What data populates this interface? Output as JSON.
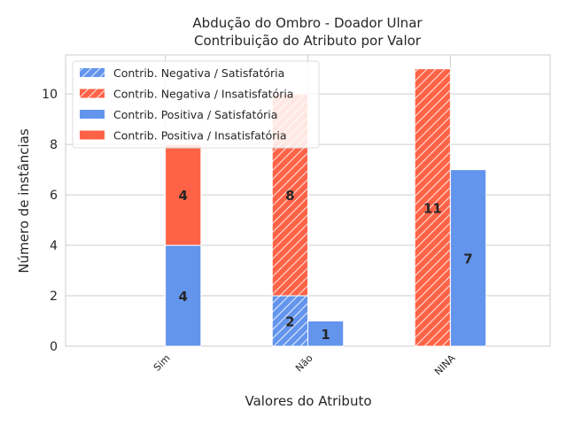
{
  "chart_data": {
    "type": "bar",
    "title_line1": "Abdução do Ombro - Doador Ulnar",
    "title_line2": "Contribuição do Atributo por Valor",
    "xlabel": "Valores do Atributo",
    "ylabel": "Número de instâncias",
    "categories": [
      "Sim",
      "Não",
      "NINA"
    ],
    "ylim": [
      0,
      11.55
    ],
    "yticks": [
      0,
      2,
      4,
      6,
      8,
      10
    ],
    "grid": true,
    "legend_position": "top-left",
    "colors": {
      "satisfatoria": "#6495ed",
      "insatisfatoria": "#ff6347"
    },
    "groups": [
      {
        "name": "Contrib. Negativa",
        "hatched": true,
        "series": [
          {
            "name": "Contrib. Negativa / Satisfatória",
            "color_key": "satisfatoria",
            "values": [
              0,
              2,
              0
            ]
          },
          {
            "name": "Contrib. Negativa / Insatisfatória",
            "color_key": "insatisfatoria",
            "values": [
              0,
              8,
              11
            ]
          }
        ]
      },
      {
        "name": "Contrib. Positiva",
        "hatched": false,
        "series": [
          {
            "name": "Contrib. Positiva / Satisfatória",
            "color_key": "satisfatoria",
            "values": [
              4,
              1,
              7
            ]
          },
          {
            "name": "Contrib. Positiva / Insatisfatória",
            "color_key": "insatisfatoria",
            "values": [
              4,
              0,
              0
            ]
          }
        ]
      }
    ]
  }
}
